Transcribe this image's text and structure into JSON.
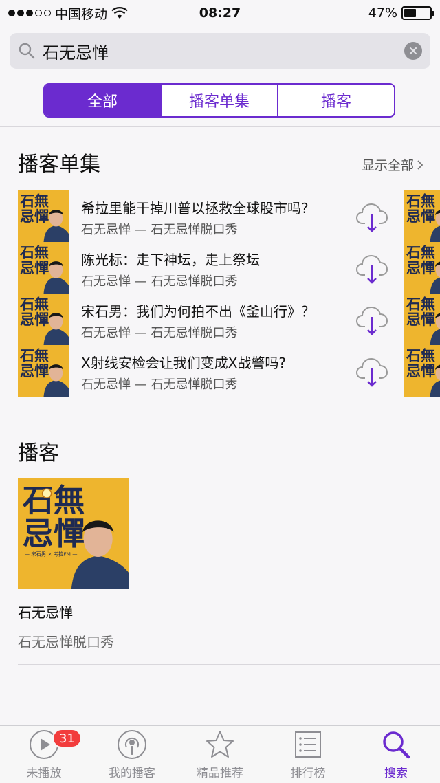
{
  "status_bar": {
    "carrier": "中国移动",
    "time": "08:27",
    "battery": "47%",
    "battery_level": 0.47
  },
  "search": {
    "query": "石无忌惮",
    "icon": "search-icon",
    "clear_icon": "clear-icon"
  },
  "segments": [
    {
      "label": "全部",
      "active": true
    },
    {
      "label": "播客单集",
      "active": false
    },
    {
      "label": "播客",
      "active": false
    }
  ],
  "episodes_section": {
    "title": "播客单集",
    "see_all": "显示全部",
    "items": [
      {
        "title": "希拉里能干掉川普以拯救全球股市吗?",
        "subtitle": "石无忌惮 — 石无忌惮脱口秀"
      },
      {
        "title": "陈光标：走下神坛，走上祭坛",
        "subtitle": "石无忌惮 — 石无忌惮脱口秀"
      },
      {
        "title": "宋石男：我们为何拍不出《釜山行》？",
        "subtitle": "石无忌惮 — 石无忌惮脱口秀"
      },
      {
        "title": "X射线安检会让我们变成X战警吗?",
        "subtitle": "石无忌惮 — 石无忌惮脱口秀"
      }
    ]
  },
  "podcasts_section": {
    "title": "播客",
    "items": [
      {
        "name": "石无忌惮",
        "author": "石无忌惮脱口秀"
      }
    ]
  },
  "tab_bar": {
    "items": [
      {
        "label": "未播放",
        "icon": "play-circle-icon",
        "badge": "31",
        "active": false
      },
      {
        "label": "我的播客",
        "icon": "podcast-icon",
        "active": false
      },
      {
        "label": "精品推荐",
        "icon": "star-icon",
        "active": false
      },
      {
        "label": "排行榜",
        "icon": "list-icon",
        "active": false
      },
      {
        "label": "搜索",
        "icon": "search-icon",
        "active": true
      }
    ]
  },
  "colors": {
    "accent": "#6b2bcf",
    "cover_yellow": "#eeb52e",
    "badge_red": "#f23d3d"
  }
}
